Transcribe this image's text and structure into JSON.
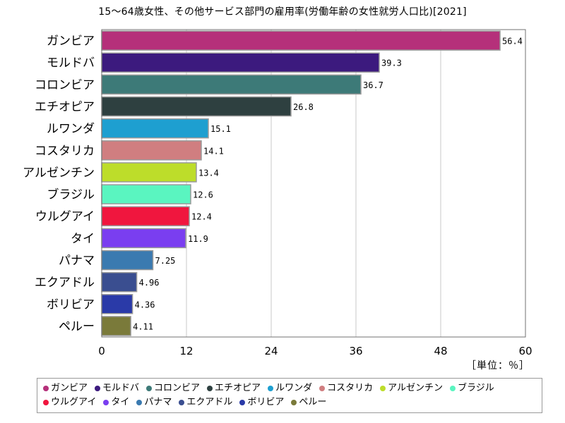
{
  "chart_data": {
    "type": "bar",
    "orientation": "horizontal",
    "title": "15～64歳女性、その他サービス部門の雇用率(労働年齢の女性就労人口比)[2021]",
    "unit_label": "［単位：％］",
    "xlim": [
      0,
      60
    ],
    "x_ticks": [
      "0",
      "12",
      "24",
      "36",
      "48",
      "60"
    ],
    "grid": true,
    "legend_position": "bottom",
    "categories": [
      "ガンビア",
      "モルドバ",
      "コロンビア",
      "エチオピア",
      "ルワンダ",
      "コスタリカ",
      "アルゼンチン",
      "ブラジル",
      "ウルグアイ",
      "タイ",
      "パナマ",
      "エクアドル",
      "ボリビア",
      "ペルー"
    ],
    "values": [
      56.4,
      39.3,
      36.7,
      26.8,
      15.1,
      14.1,
      13.4,
      12.6,
      12.4,
      11.9,
      7.25,
      4.96,
      4.36,
      4.11
    ],
    "value_labels": [
      "56.4",
      "39.3",
      "36.7",
      "26.8",
      "15.1",
      "14.1",
      "13.4",
      "12.6",
      "12.4",
      "11.9",
      "7.25",
      "4.96",
      "4.36",
      "4.11"
    ],
    "colors": [
      "#b5307a",
      "#3c1a7e",
      "#3d7a78",
      "#2e4040",
      "#1e9fd0",
      "#d07e80",
      "#bddd2a",
      "#5af5c0",
      "#f0163e",
      "#7a3ef0",
      "#3a7ab0",
      "#3a4e90",
      "#2a3aa8",
      "#7a7a3a"
    ]
  }
}
